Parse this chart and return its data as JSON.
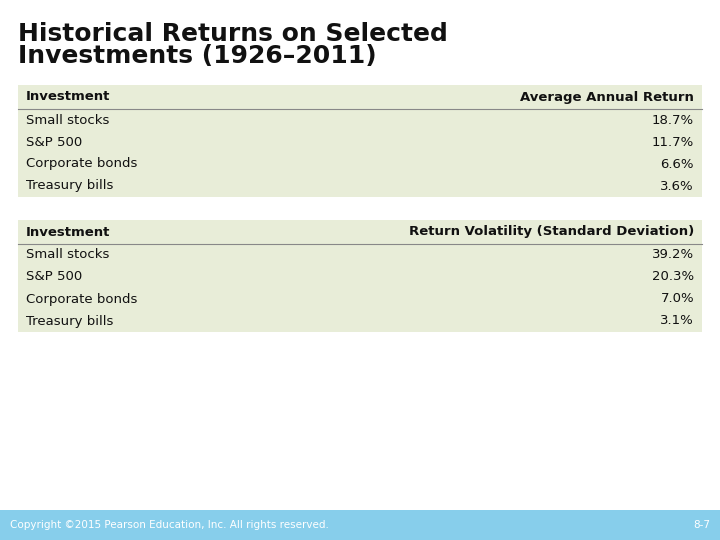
{
  "title_line1": "Historical Returns on Selected",
  "title_line2": "Investments (1926–2011)",
  "title_fontsize": 18,
  "title_fontweight": "bold",
  "background_color": "#ffffff",
  "footer_bg_color": "#87ceeb",
  "footer_text": "Copyright ©2015 Pearson Education, Inc. All rights reserved.",
  "footer_page": "8-7",
  "table1_header": [
    "Investment",
    "Average Annual Return"
  ],
  "table1_rows": [
    [
      "Small stocks",
      "18.7%"
    ],
    [
      "S&P 500",
      "11.7%"
    ],
    [
      "Corporate bonds",
      "6.6%"
    ],
    [
      "Treasury bills",
      "3.6%"
    ]
  ],
  "table2_header": [
    "Investment",
    "Return Volatility (Standard Deviation)"
  ],
  "table2_rows": [
    [
      "Small stocks",
      "39.2%"
    ],
    [
      "S&P 500",
      "20.3%"
    ],
    [
      "Corporate bonds",
      "7.0%"
    ],
    [
      "Treasury bills",
      "3.1%"
    ]
  ],
  "table_bg_color": "#e8edd8",
  "header_line_color": "#888888",
  "text_color": "#111111",
  "header_fontsize": 9.5,
  "row_fontsize": 9.5,
  "footer_fontsize": 7.5,
  "footer_text_color": "#ffffff"
}
